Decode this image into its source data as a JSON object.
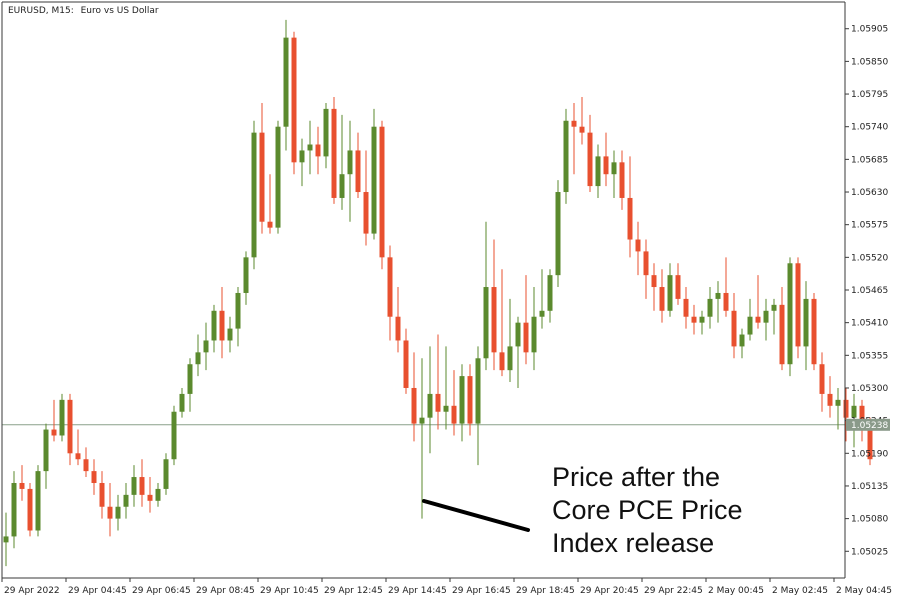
{
  "header": {
    "symbol": "EURUSD, M15:",
    "description": "Euro vs US Dollar"
  },
  "annotation": {
    "lines": [
      "Price after the",
      "Core PCE Price",
      "Index release"
    ]
  },
  "colors": {
    "bull": "#5b8a2e",
    "bear": "#e8502f",
    "axis": "#3a3a3a",
    "price_line": "#8aa08a",
    "badge": "#8a9a8a"
  },
  "chart_data": {
    "type": "candlestick",
    "title": "",
    "ylim": [
      1.0498,
      1.0595
    ],
    "yticks": [
      "1.05905",
      "1.05850",
      "1.05795",
      "1.05740",
      "1.05685",
      "1.05630",
      "1.05575",
      "1.05520",
      "1.05465",
      "1.05410",
      "1.05355",
      "1.05300",
      "1.05245",
      "1.05190",
      "1.05135",
      "1.05080",
      "1.05025"
    ],
    "xticks": [
      "29 Apr 2022",
      "29 Apr 04:45",
      "29 Apr 06:45",
      "29 Apr 08:45",
      "29 Apr 10:45",
      "29 Apr 12:45",
      "29 Apr 14:45",
      "29 Apr 16:45",
      "29 Apr 18:45",
      "29 Apr 20:45",
      "29 Apr 22:45",
      "2 May 00:45",
      "2 May 02:45",
      "2 May 04:45"
    ],
    "current_price": "1.05238",
    "candles": [
      {
        "o": 1.0504,
        "h": 1.0509,
        "l": 1.05,
        "c": 1.0505
      },
      {
        "o": 1.0505,
        "h": 1.0516,
        "l": 1.0503,
        "c": 1.0514
      },
      {
        "o": 1.0514,
        "h": 1.0517,
        "l": 1.0511,
        "c": 1.0513
      },
      {
        "o": 1.0513,
        "h": 1.0514,
        "l": 1.0505,
        "c": 1.0506
      },
      {
        "o": 1.0506,
        "h": 1.0517,
        "l": 1.0505,
        "c": 1.0516
      },
      {
        "o": 1.0516,
        "h": 1.0524,
        "l": 1.0513,
        "c": 1.0523
      },
      {
        "o": 1.0523,
        "h": 1.0528,
        "l": 1.0521,
        "c": 1.0522
      },
      {
        "o": 1.0522,
        "h": 1.0529,
        "l": 1.0521,
        "c": 1.0528
      },
      {
        "o": 1.0528,
        "h": 1.0529,
        "l": 1.0517,
        "c": 1.0519
      },
      {
        "o": 1.0519,
        "h": 1.0523,
        "l": 1.0517,
        "c": 1.0518
      },
      {
        "o": 1.0518,
        "h": 1.052,
        "l": 1.0515,
        "c": 1.0516
      },
      {
        "o": 1.0516,
        "h": 1.0518,
        "l": 1.0512,
        "c": 1.0514
      },
      {
        "o": 1.0514,
        "h": 1.0516,
        "l": 1.0508,
        "c": 1.051
      },
      {
        "o": 1.051,
        "h": 1.0514,
        "l": 1.0505,
        "c": 1.0508
      },
      {
        "o": 1.0508,
        "h": 1.0512,
        "l": 1.0506,
        "c": 1.051
      },
      {
        "o": 1.051,
        "h": 1.0514,
        "l": 1.0508,
        "c": 1.0512
      },
      {
        "o": 1.0512,
        "h": 1.0517,
        "l": 1.051,
        "c": 1.0515
      },
      {
        "o": 1.0515,
        "h": 1.0518,
        "l": 1.051,
        "c": 1.0512
      },
      {
        "o": 1.0512,
        "h": 1.0515,
        "l": 1.0509,
        "c": 1.0511
      },
      {
        "o": 1.0511,
        "h": 1.0514,
        "l": 1.051,
        "c": 1.0513
      },
      {
        "o": 1.0513,
        "h": 1.0519,
        "l": 1.0512,
        "c": 1.0518
      },
      {
        "o": 1.0518,
        "h": 1.0527,
        "l": 1.0517,
        "c": 1.0526
      },
      {
        "o": 1.0526,
        "h": 1.053,
        "l": 1.0525,
        "c": 1.0529
      },
      {
        "o": 1.0529,
        "h": 1.0535,
        "l": 1.0526,
        "c": 1.0534
      },
      {
        "o": 1.0534,
        "h": 1.0539,
        "l": 1.0532,
        "c": 1.0536
      },
      {
        "o": 1.0536,
        "h": 1.0541,
        "l": 1.0533,
        "c": 1.0538
      },
      {
        "o": 1.0538,
        "h": 1.0544,
        "l": 1.0536,
        "c": 1.0543
      },
      {
        "o": 1.0543,
        "h": 1.0547,
        "l": 1.0535,
        "c": 1.0538
      },
      {
        "o": 1.0538,
        "h": 1.0542,
        "l": 1.0536,
        "c": 1.054
      },
      {
        "o": 1.054,
        "h": 1.0547,
        "l": 1.0537,
        "c": 1.0546
      },
      {
        "o": 1.0546,
        "h": 1.0553,
        "l": 1.0544,
        "c": 1.0552
      },
      {
        "o": 1.0552,
        "h": 1.0575,
        "l": 1.055,
        "c": 1.0573
      },
      {
        "o": 1.0573,
        "h": 1.0578,
        "l": 1.0556,
        "c": 1.0558
      },
      {
        "o": 1.0558,
        "h": 1.0566,
        "l": 1.0556,
        "c": 1.0557
      },
      {
        "o": 1.0557,
        "h": 1.0575,
        "l": 1.0556,
        "c": 1.0574
      },
      {
        "o": 1.0574,
        "h": 1.0592,
        "l": 1.057,
        "c": 1.0589
      },
      {
        "o": 1.0589,
        "h": 1.059,
        "l": 1.0566,
        "c": 1.0568
      },
      {
        "o": 1.0568,
        "h": 1.0572,
        "l": 1.0564,
        "c": 1.057
      },
      {
        "o": 1.057,
        "h": 1.0575,
        "l": 1.0566,
        "c": 1.0571
      },
      {
        "o": 1.0571,
        "h": 1.0574,
        "l": 1.0566,
        "c": 1.0569
      },
      {
        "o": 1.0569,
        "h": 1.0578,
        "l": 1.0567,
        "c": 1.0577
      },
      {
        "o": 1.0577,
        "h": 1.0579,
        "l": 1.0561,
        "c": 1.0562
      },
      {
        "o": 1.0562,
        "h": 1.0576,
        "l": 1.056,
        "c": 1.0566
      },
      {
        "o": 1.0566,
        "h": 1.0575,
        "l": 1.0558,
        "c": 1.057
      },
      {
        "o": 1.057,
        "h": 1.0573,
        "l": 1.0562,
        "c": 1.0563
      },
      {
        "o": 1.0563,
        "h": 1.057,
        "l": 1.0554,
        "c": 1.0556
      },
      {
        "o": 1.0556,
        "h": 1.0577,
        "l": 1.0555,
        "c": 1.0574
      },
      {
        "o": 1.0574,
        "h": 1.0575,
        "l": 1.055,
        "c": 1.0552
      },
      {
        "o": 1.0552,
        "h": 1.0554,
        "l": 1.0538,
        "c": 1.0542
      },
      {
        "o": 1.0542,
        "h": 1.0547,
        "l": 1.0536,
        "c": 1.0538
      },
      {
        "o": 1.0538,
        "h": 1.054,
        "l": 1.0529,
        "c": 1.053
      },
      {
        "o": 1.053,
        "h": 1.0536,
        "l": 1.0521,
        "c": 1.0524
      },
      {
        "o": 1.0524,
        "h": 1.0535,
        "l": 1.0508,
        "c": 1.0525
      },
      {
        "o": 1.0525,
        "h": 1.0537,
        "l": 1.0519,
        "c": 1.0529
      },
      {
        "o": 1.0529,
        "h": 1.0539,
        "l": 1.0523,
        "c": 1.0526
      },
      {
        "o": 1.0526,
        "h": 1.0537,
        "l": 1.0523,
        "c": 1.0527
      },
      {
        "o": 1.0527,
        "h": 1.0533,
        "l": 1.0522,
        "c": 1.0524
      },
      {
        "o": 1.0524,
        "h": 1.0534,
        "l": 1.0521,
        "c": 1.0532
      },
      {
        "o": 1.0532,
        "h": 1.0534,
        "l": 1.0522,
        "c": 1.0524
      },
      {
        "o": 1.0524,
        "h": 1.0537,
        "l": 1.0517,
        "c": 1.0535
      },
      {
        "o": 1.0535,
        "h": 1.0558,
        "l": 1.0533,
        "c": 1.0547
      },
      {
        "o": 1.0547,
        "h": 1.0555,
        "l": 1.0533,
        "c": 1.0536
      },
      {
        "o": 1.0536,
        "h": 1.055,
        "l": 1.0532,
        "c": 1.0533
      },
      {
        "o": 1.0533,
        "h": 1.0545,
        "l": 1.0531,
        "c": 1.0537
      },
      {
        "o": 1.0537,
        "h": 1.0542,
        "l": 1.053,
        "c": 1.0541
      },
      {
        "o": 1.0541,
        "h": 1.0549,
        "l": 1.0534,
        "c": 1.0536
      },
      {
        "o": 1.0536,
        "h": 1.0547,
        "l": 1.0533,
        "c": 1.0542
      },
      {
        "o": 1.0542,
        "h": 1.055,
        "l": 1.054,
        "c": 1.0543
      },
      {
        "o": 1.0543,
        "h": 1.055,
        "l": 1.0541,
        "c": 1.0549
      },
      {
        "o": 1.0549,
        "h": 1.0565,
        "l": 1.0547,
        "c": 1.0563
      },
      {
        "o": 1.0563,
        "h": 1.0577,
        "l": 1.0561,
        "c": 1.0575
      },
      {
        "o": 1.0575,
        "h": 1.0578,
        "l": 1.0566,
        "c": 1.0574
      },
      {
        "o": 1.0574,
        "h": 1.0579,
        "l": 1.0571,
        "c": 1.0573
      },
      {
        "o": 1.0573,
        "h": 1.0576,
        "l": 1.0563,
        "c": 1.0564
      },
      {
        "o": 1.0564,
        "h": 1.0571,
        "l": 1.0562,
        "c": 1.0569
      },
      {
        "o": 1.0569,
        "h": 1.0573,
        "l": 1.0564,
        "c": 1.0566
      },
      {
        "o": 1.0566,
        "h": 1.057,
        "l": 1.0562,
        "c": 1.0568
      },
      {
        "o": 1.0568,
        "h": 1.057,
        "l": 1.056,
        "c": 1.0562
      },
      {
        "o": 1.0562,
        "h": 1.0569,
        "l": 1.0552,
        "c": 1.0555
      },
      {
        "o": 1.0555,
        "h": 1.0558,
        "l": 1.0549,
        "c": 1.0553
      },
      {
        "o": 1.0553,
        "h": 1.0555,
        "l": 1.0545,
        "c": 1.0549
      },
      {
        "o": 1.0549,
        "h": 1.0551,
        "l": 1.0543,
        "c": 1.0547
      },
      {
        "o": 1.0547,
        "h": 1.055,
        "l": 1.0541,
        "c": 1.0543
      },
      {
        "o": 1.0543,
        "h": 1.0551,
        "l": 1.0542,
        "c": 1.0549
      },
      {
        "o": 1.0549,
        "h": 1.0551,
        "l": 1.0544,
        "c": 1.0545
      },
      {
        "o": 1.0545,
        "h": 1.0547,
        "l": 1.054,
        "c": 1.0542
      },
      {
        "o": 1.0542,
        "h": 1.0544,
        "l": 1.0539,
        "c": 1.0541
      },
      {
        "o": 1.0541,
        "h": 1.0543,
        "l": 1.0539,
        "c": 1.0542
      },
      {
        "o": 1.0542,
        "h": 1.0547,
        "l": 1.054,
        "c": 1.0545
      },
      {
        "o": 1.0545,
        "h": 1.0548,
        "l": 1.0541,
        "c": 1.0546
      },
      {
        "o": 1.0546,
        "h": 1.0552,
        "l": 1.0542,
        "c": 1.0543
      },
      {
        "o": 1.0543,
        "h": 1.0546,
        "l": 1.0535,
        "c": 1.0537
      },
      {
        "o": 1.0537,
        "h": 1.054,
        "l": 1.0535,
        "c": 1.0539
      },
      {
        "o": 1.0539,
        "h": 1.0545,
        "l": 1.0538,
        "c": 1.0542
      },
      {
        "o": 1.0542,
        "h": 1.0549,
        "l": 1.054,
        "c": 1.0541
      },
      {
        "o": 1.0541,
        "h": 1.0545,
        "l": 1.0538,
        "c": 1.0543
      },
      {
        "o": 1.0543,
        "h": 1.0545,
        "l": 1.0539,
        "c": 1.0544
      },
      {
        "o": 1.0544,
        "h": 1.0547,
        "l": 1.0533,
        "c": 1.0534
      },
      {
        "o": 1.0534,
        "h": 1.0552,
        "l": 1.0532,
        "c": 1.0551
      },
      {
        "o": 1.0551,
        "h": 1.0552,
        "l": 1.0535,
        "c": 1.0537
      },
      {
        "o": 1.0537,
        "h": 1.0548,
        "l": 1.0533,
        "c": 1.0545
      },
      {
        "o": 1.0545,
        "h": 1.0546,
        "l": 1.0533,
        "c": 1.0534
      },
      {
        "o": 1.0534,
        "h": 1.0536,
        "l": 1.0526,
        "c": 1.0529
      },
      {
        "o": 1.0529,
        "h": 1.0532,
        "l": 1.0525,
        "c": 1.0527
      },
      {
        "o": 1.0527,
        "h": 1.053,
        "l": 1.0523,
        "c": 1.0528
      },
      {
        "o": 1.0528,
        "h": 1.053,
        "l": 1.0521,
        "c": 1.0525
      },
      {
        "o": 1.0525,
        "h": 1.0529,
        "l": 1.052,
        "c": 1.0527
      },
      {
        "o": 1.0527,
        "h": 1.0528,
        "l": 1.0521,
        "c": 1.0523
      },
      {
        "o": 1.0523,
        "h": 1.0525,
        "l": 1.0517,
        "c": 1.0518
      }
    ]
  }
}
